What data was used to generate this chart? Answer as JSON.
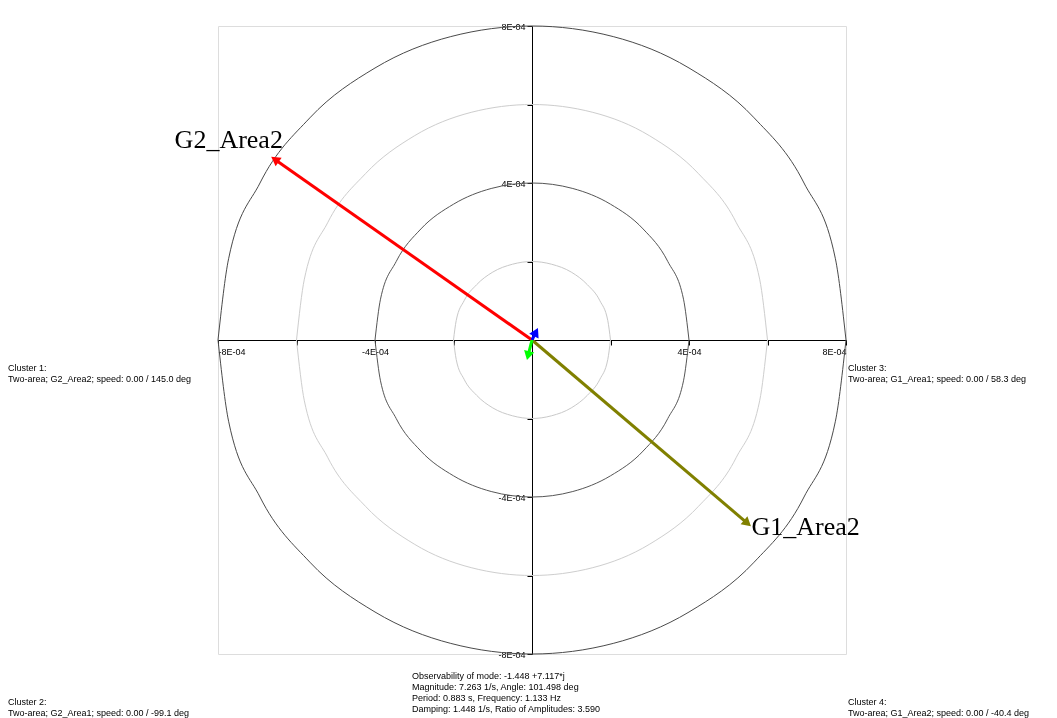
{
  "chart_data": {
    "type": "line",
    "xlim": [
      -0.0008,
      0.0008
    ],
    "ylim": [
      -0.0008,
      0.0008
    ],
    "xticks": [
      {
        "value": -0.0008,
        "label": "-8E-04"
      },
      {
        "value": -0.0006,
        "label": null
      },
      {
        "value": -0.0004,
        "label": "-4E-04"
      },
      {
        "value": -0.0002,
        "label": null
      },
      {
        "value": 0.0002,
        "label": null
      },
      {
        "value": 0.0004,
        "label": "4E-04"
      },
      {
        "value": 0.0006,
        "label": null
      },
      {
        "value": 0.0008,
        "label": "8E-04"
      }
    ],
    "yticks": [
      {
        "value": -0.0008,
        "label": "-8E-04"
      },
      {
        "value": -0.0006,
        "label": null
      },
      {
        "value": -0.0004,
        "label": "-4E-04"
      },
      {
        "value": -0.0002,
        "label": null
      },
      {
        "value": 0.0002,
        "label": null
      },
      {
        "value": 0.0004,
        "label": "4E-04"
      },
      {
        "value": 0.0006,
        "label": null
      },
      {
        "value": 0.0008,
        "label": "8E-04"
      }
    ],
    "series": [
      {
        "name": "G2_Area2",
        "color": "#ff0000",
        "x": [
          0,
          -0.000655
        ],
        "values": [
          0,
          0.00046
        ]
      },
      {
        "name": "G1_Area2",
        "color": "#808000",
        "x": [
          0,
          0.000549
        ],
        "values": [
          0,
          -0.000467
        ]
      },
      {
        "color": "#0000ff",
        "x": [
          0,
          1e-05
        ],
        "values": [
          0,
          2e-05
        ]
      },
      {
        "color": "#00ff00",
        "x": [
          0,
          -1e-05
        ],
        "values": [
          0,
          -4e-05
        ]
      },
      {
        "color": "#c8c8c8",
        "x": [
          -0.0002,
          -0.000193,
          -0.000173,
          -0.000141,
          -0.0001,
          -5e-05,
          0,
          5e-05,
          0.0001,
          0.000141,
          0.000173,
          0.000193,
          0.0002
        ],
        "values": [
          0,
          5e-05,
          0.0001,
          0.000141,
          0.000173,
          0.000193,
          0.0002,
          0.000193,
          0.000173,
          0.000141,
          0.0001,
          5e-05,
          0
        ]
      },
      {
        "color": "#c9c9c9",
        "x": [
          -0.0002,
          -0.000193,
          -0.000173,
          -0.000141,
          -0.0001,
          -5e-05,
          0,
          5e-05,
          0.0001,
          0.000141,
          0.000173,
          0.000193,
          0.0002
        ],
        "values": [
          0,
          -5e-05,
          -0.0001,
          -0.000141,
          -0.000173,
          -0.000193,
          -0.0002,
          -0.000193,
          -0.000173,
          -0.000141,
          -0.0001,
          -5e-05,
          0
        ]
      },
      {
        "color": "#555555",
        "x": [
          -0.0004,
          -0.000386,
          -0.000346,
          -0.000283,
          -0.0002,
          -0.000104,
          0,
          0.000104,
          0.0002,
          0.000283,
          0.000346,
          0.000386,
          0.0004
        ],
        "values": [
          0,
          0.000104,
          0.0002,
          0.000283,
          0.000346,
          0.000386,
          0.0004,
          0.000386,
          0.000346,
          0.000283,
          0.0002,
          0.000104,
          0
        ]
      },
      {
        "color": "#565656",
        "x": [
          -0.0004,
          -0.000386,
          -0.000346,
          -0.000283,
          -0.0002,
          -0.000104,
          0,
          0.000104,
          0.0002,
          0.000283,
          0.000346,
          0.000386,
          0.0004
        ],
        "values": [
          0,
          -0.000104,
          -0.0002,
          -0.000283,
          -0.000346,
          -0.000386,
          -0.0004,
          -0.000386,
          -0.000346,
          -0.000283,
          -0.0002,
          -0.000104,
          0
        ]
      },
      {
        "color": "#cdcdcd",
        "x": [
          -0.0006,
          -0.00058,
          -0.00052,
          -0.000424,
          -0.0003,
          -0.000155,
          0,
          0.000155,
          0.0003,
          0.000424,
          0.00052,
          0.00058,
          0.0006
        ],
        "values": [
          0,
          0.000155,
          0.0003,
          0.000424,
          0.00052,
          0.00058,
          0.0006,
          0.00058,
          0.00052,
          0.000424,
          0.0003,
          0.000155,
          0
        ]
      },
      {
        "color": "#cecece",
        "x": [
          -0.0006,
          -0.00058,
          -0.00052,
          -0.000424,
          -0.0003,
          -0.000155,
          0,
          0.000155,
          0.0003,
          0.000424,
          0.00052,
          0.00058,
          0.0006
        ],
        "values": [
          0,
          -0.000155,
          -0.0003,
          -0.000424,
          -0.00052,
          -0.00058,
          -0.0006,
          -0.00058,
          -0.00052,
          -0.000424,
          -0.0003,
          -0.000155,
          0
        ]
      },
      {
        "color": "#4a4a4a",
        "x": [
          -0.0008,
          -0.000773,
          -0.000693,
          -0.000566,
          -0.0004,
          -0.000207,
          0,
          0.000207,
          0.0004,
          0.000566,
          0.000693,
          0.000773,
          0.0008
        ],
        "values": [
          0,
          0.000207,
          0.0004,
          0.000566,
          0.000693,
          0.000773,
          0.0008,
          0.000773,
          0.000693,
          0.000566,
          0.0004,
          0.000207,
          0
        ]
      },
      {
        "color": "#4b4b4b",
        "x": [
          -0.0008,
          -0.000773,
          -0.000693,
          -0.000566,
          -0.0004,
          -0.000207,
          0,
          0.000207,
          0.0004,
          0.000566,
          0.000693,
          0.000773,
          0.0008
        ],
        "values": [
          0,
          -0.000207,
          -0.0004,
          -0.000566,
          -0.000693,
          -0.000773,
          -0.0008,
          -0.000773,
          -0.000693,
          -0.000566,
          -0.0004,
          -0.000207,
          0
        ]
      }
    ],
    "annotations": [
      "Cluster 1:\nTwo-area; G2_Area2; speed:   0.00 /  145.0 deg",
      "Cluster 3:\nTwo-area; G1_Area1; speed:   0.00 /   58.3 deg",
      "Cluster 2:\nTwo-area; G2_Area1; speed:   0.00 /  -99.1 deg",
      "Cluster 4:\nTwo-area; G1_Area2; speed:   0.00 /  -40.4 deg",
      "Observability of mode: -1.448 +7.117*j\nMagnitude: 7.263 1/s,  Angle: 101.498 deg\nPeriod: 0.883 s,  Frequency: 1.133 Hz\nDamping: 1.448 1/s,  Ratio of Amplitudes: 3.590"
    ]
  }
}
